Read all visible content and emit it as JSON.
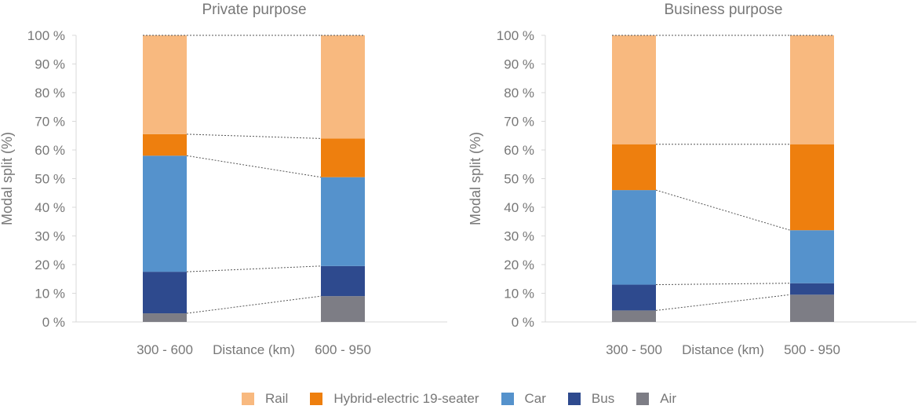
{
  "chart_data": [
    {
      "type": "bar",
      "stacked": true,
      "title": "Private purpose",
      "ylabel": "Modal split (%)",
      "xlabel": "Distance (km)",
      "ylim": [
        0,
        100
      ],
      "ytick_labels": [
        "0 %",
        "10 %",
        "20 %",
        "30 %",
        "40 %",
        "50 %",
        "60 %",
        "70 %",
        "80 %",
        "90 %",
        "100 %"
      ],
      "categories": [
        "300 - 600",
        "600 - 950"
      ],
      "series": [
        {
          "name": "Air",
          "values": [
            3,
            9
          ]
        },
        {
          "name": "Bus",
          "values": [
            14.5,
            10.5
          ]
        },
        {
          "name": "Car",
          "values": [
            40.5,
            31
          ]
        },
        {
          "name": "Hybrid-electric 19-seater",
          "values": [
            7.5,
            13.5
          ]
        },
        {
          "name": "Rail",
          "values": [
            34.5,
            36
          ]
        }
      ]
    },
    {
      "type": "bar",
      "stacked": true,
      "title": "Business purpose",
      "ylabel": "Modal split (%)",
      "xlabel": "Distance (km)",
      "ylim": [
        0,
        100
      ],
      "ytick_labels": [
        "0 %",
        "10 %",
        "20 %",
        "30 %",
        "40 %",
        "50 %",
        "60 %",
        "70 %",
        "80 %",
        "90 %",
        "100 %"
      ],
      "categories": [
        "300 - 500",
        "500 - 950"
      ],
      "series": [
        {
          "name": "Air",
          "values": [
            4,
            9.5
          ]
        },
        {
          "name": "Bus",
          "values": [
            9,
            4
          ]
        },
        {
          "name": "Car",
          "values": [
            33,
            18.5
          ]
        },
        {
          "name": "Hybrid-electric 19-seater",
          "values": [
            16,
            30
          ]
        },
        {
          "name": "Rail",
          "values": [
            38,
            38
          ]
        }
      ]
    }
  ],
  "legend": [
    {
      "name": "Rail",
      "color": "#f8b97f"
    },
    {
      "name": "Hybrid-electric 19-seater",
      "color": "#ee7f0e"
    },
    {
      "name": "Car",
      "color": "#5592cc"
    },
    {
      "name": "Bus",
      "color": "#2e4a8e"
    },
    {
      "name": "Air",
      "color": "#7d7d85"
    }
  ],
  "colors": {
    "Rail": "#f8b97f",
    "Hybrid-electric 19-seater": "#ee7f0e",
    "Car": "#5592cc",
    "Bus": "#2e4a8e",
    "Air": "#7d7d85",
    "axis": "#d9d9d9",
    "text": "#777777",
    "connector": "#555555"
  }
}
